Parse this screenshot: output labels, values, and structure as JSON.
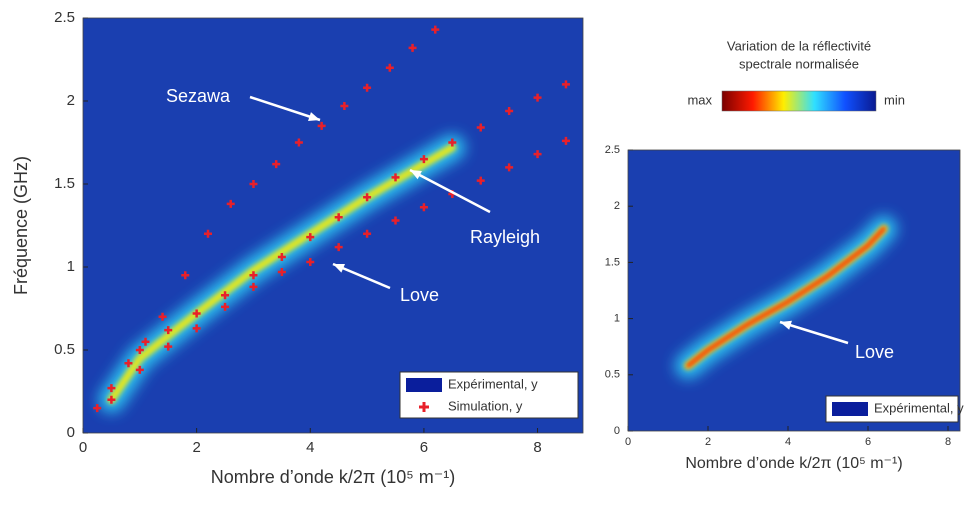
{
  "chart_data": [
    {
      "type": "scatter",
      "ylabel": "Fréquence (GHz)",
      "xlabel": "Nombre d’onde k/2π (10⁵ m⁻¹)",
      "xlim": [
        0,
        8.8
      ],
      "ylim": [
        0,
        2.5
      ],
      "xticks": [
        0,
        2,
        4,
        6,
        8
      ],
      "yticks": [
        0,
        0.5,
        1,
        1.5,
        2,
        2.5
      ],
      "background": "#1a3fb0",
      "legend": "lower right",
      "annotations": [
        "Sezawa",
        "Rayleigh",
        "Love"
      ],
      "series": [
        {
          "name": "Expérimental, y",
          "kind": "ridge",
          "color": "#0a1e9c",
          "x": [
            0.5,
            1,
            2,
            3,
            4,
            5,
            6,
            6.5
          ],
          "y": [
            0.2,
            0.45,
            0.72,
            0.98,
            1.2,
            1.42,
            1.62,
            1.72
          ]
        },
        {
          "name": "Simulation, y",
          "kind": "plus",
          "color": "#e8202a",
          "x": [
            0.5,
            1,
            1.5,
            2,
            2.5,
            3,
            3.5,
            4,
            4.5,
            5,
            5.5,
            6,
            6.5,
            7,
            7.5,
            8,
            8.5,
            1,
            1.5,
            2,
            2.5,
            3,
            3.5,
            4,
            4.5,
            5,
            5.5,
            6,
            6.5,
            7,
            7.5,
            8,
            8.5,
            0.25,
            0.5,
            0.8,
            1.1,
            1.4,
            1.8,
            2.2,
            2.6,
            3,
            3.4,
            3.8,
            4.2,
            4.6,
            5,
            5.4,
            5.8,
            6.2
          ],
          "y": [
            0.2,
            0.38,
            0.52,
            0.63,
            0.76,
            0.88,
            0.97,
            1.03,
            1.12,
            1.2,
            1.28,
            1.36,
            1.44,
            1.52,
            1.6,
            1.68,
            1.76,
            0.5,
            0.62,
            0.72,
            0.83,
            0.95,
            1.06,
            1.18,
            1.3,
            1.42,
            1.54,
            1.65,
            1.75,
            1.84,
            1.94,
            2.02,
            2.1,
            0.15,
            0.27,
            0.42,
            0.55,
            0.7,
            0.95,
            1.2,
            1.38,
            1.5,
            1.62,
            1.75,
            1.85,
            1.97,
            2.08,
            2.2,
            2.32,
            2.43
          ]
        }
      ]
    },
    {
      "type": "scatter",
      "xlabel": "Nombre d’onde k/2π (10⁵ m⁻¹)",
      "xlim": [
        0,
        8.3
      ],
      "ylim": [
        0,
        2.5
      ],
      "xticks": [
        0,
        2,
        4,
        6,
        8
      ],
      "yticks": [
        0,
        0.5,
        1,
        1.5,
        2,
        2.5
      ],
      "background": "#1a3fb0",
      "legend": "lower right",
      "annotations": [
        "Love"
      ],
      "series": [
        {
          "name": "Expérimental, y",
          "kind": "ridge",
          "color": "#0a1e9c",
          "x": [
            1.5,
            2,
            3,
            4,
            5,
            6,
            6.4
          ],
          "y": [
            0.58,
            0.72,
            0.95,
            1.15,
            1.38,
            1.65,
            1.8
          ]
        }
      ]
    }
  ],
  "colorbar": {
    "title": [
      "Variation de la réflectivité",
      "spectrale normalisée"
    ],
    "max_label": "max",
    "min_label": "min",
    "colors": [
      "#7a0000",
      "#ff1a00",
      "#ffee00",
      "#30e0ff",
      "#1050ff",
      "#0a1a90"
    ]
  }
}
